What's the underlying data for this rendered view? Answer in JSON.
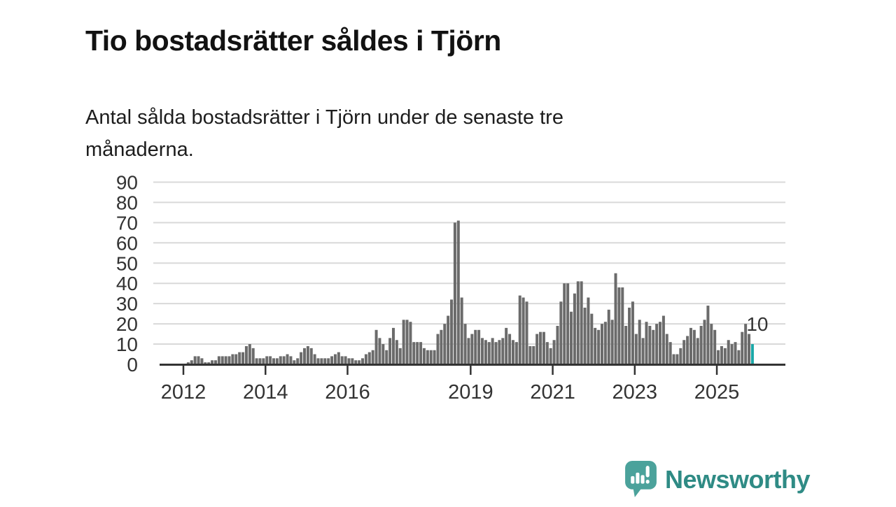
{
  "header": {
    "title": "Tio bostadsrätter såldes i Tjörn",
    "subtitle_line1": "Antal sålda bostadsrätter i Tjörn under de senaste tre",
    "subtitle_line2": "månaderna."
  },
  "chart_data": {
    "type": "bar",
    "title": "Tio bostadsrätter såldes i Tjörn",
    "subtitle": "Antal sålda bostadsrätter i Tjörn under de senaste tre månaderna.",
    "frequency": "monthly",
    "x_start": "2012-01",
    "x_end": "2025-11",
    "values": [
      0,
      1,
      2,
      4,
      4,
      3,
      1,
      1,
      2,
      2,
      4,
      4,
      4,
      4,
      5,
      5,
      6,
      6,
      9,
      10,
      8,
      3,
      3,
      3,
      4,
      4,
      3,
      3,
      4,
      4,
      5,
      4,
      2,
      3,
      6,
      8,
      9,
      8,
      5,
      3,
      3,
      3,
      3,
      4,
      5,
      6,
      4,
      4,
      3,
      3,
      2,
      2,
      3,
      5,
      6,
      7,
      17,
      13,
      10,
      7,
      13,
      18,
      12,
      8,
      22,
      22,
      21,
      11,
      11,
      11,
      8,
      7,
      7,
      7,
      15,
      17,
      20,
      24,
      32,
      70,
      71,
      33,
      20,
      13,
      15,
      17,
      17,
      13,
      12,
      11,
      13,
      11,
      12,
      13,
      18,
      15,
      12,
      11,
      34,
      33,
      31,
      9,
      9,
      15,
      16,
      16,
      11,
      8,
      12,
      19,
      31,
      40,
      40,
      26,
      35,
      41,
      41,
      28,
      33,
      25,
      18,
      17,
      20,
      21,
      27,
      22,
      45,
      38,
      38,
      19,
      28,
      31,
      15,
      22,
      13,
      21,
      19,
      17,
      20,
      21,
      24,
      15,
      11,
      5,
      5,
      8,
      12,
      14,
      18,
      17,
      13,
      19,
      22,
      29,
      20,
      17,
      7,
      9,
      8,
      12,
      10,
      11,
      7,
      16,
      20,
      15,
      10
    ],
    "highlight_index": 166,
    "annotation": {
      "text": "10",
      "value": 10
    },
    "y_ticks": [
      0,
      10,
      20,
      30,
      40,
      50,
      60,
      70,
      80,
      90
    ],
    "ylim": [
      0,
      90
    ],
    "grid": true,
    "x_ticks": [
      {
        "label": "2012",
        "month_index": 0
      },
      {
        "label": "2014",
        "month_index": 24
      },
      {
        "label": "2016",
        "month_index": 48
      },
      {
        "label": "2019",
        "month_index": 84
      },
      {
        "label": "2021",
        "month_index": 108
      },
      {
        "label": "2023",
        "month_index": 132
      },
      {
        "label": "2025",
        "month_index": 156
      }
    ],
    "colors": {
      "bar": "#6b6b6b",
      "highlight": "#1aa8a8",
      "axis": "#333333",
      "grid": "#d9d9d9",
      "text": "#333333"
    }
  },
  "branding": {
    "logo_text": "Newsworthy",
    "logo_text_color": "#2f8b85",
    "logo_icon_color": "#4ba29b",
    "logo_icon": "newsworthy-chart-bubble-icon"
  }
}
